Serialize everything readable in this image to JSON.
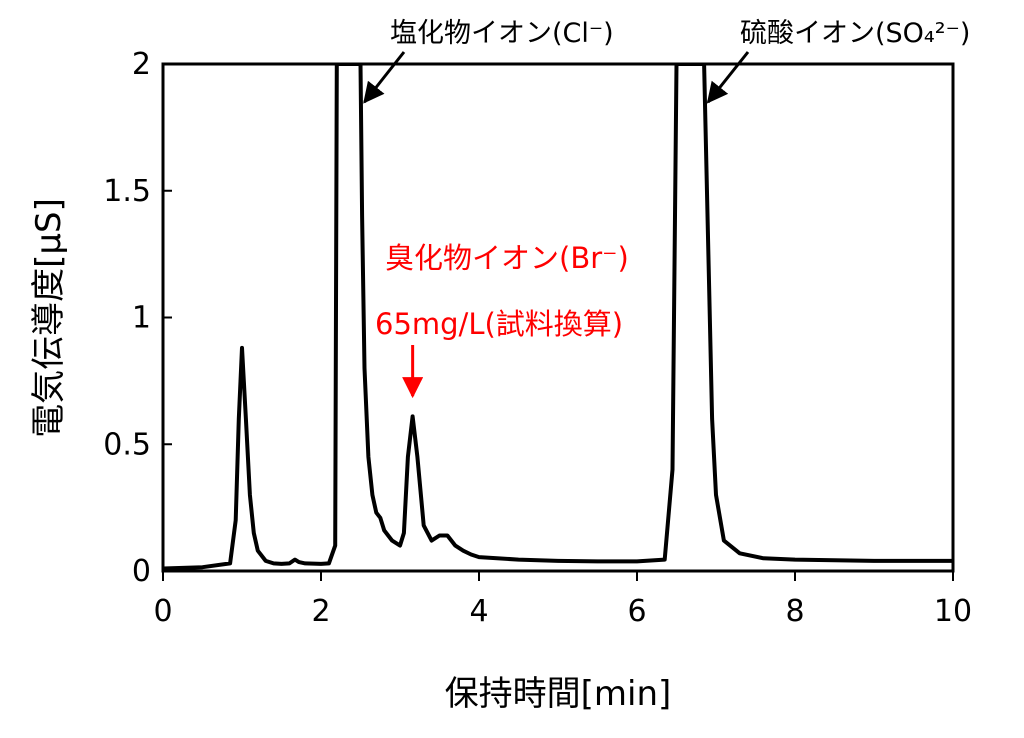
{
  "chart_data": {
    "type": "line",
    "xlabel": "保持時間[min]",
    "ylabel": "電気伝導度[μS]",
    "xlim": [
      0,
      10
    ],
    "ylim": [
      0,
      2
    ],
    "x_ticks": [
      0,
      2,
      4,
      6,
      8,
      10
    ],
    "y_ticks": [
      0,
      0.5,
      1,
      1.5,
      2
    ],
    "x_tick_labels": [
      "0",
      "2",
      "4",
      "6",
      "8",
      "10"
    ],
    "y_tick_labels": [
      "0",
      "0.5",
      "1",
      "1.5",
      "2"
    ],
    "grid": false,
    "series": [
      {
        "color": "#000000",
        "x": [
          0.0,
          0.5,
          0.85,
          0.92,
          0.96,
          1.0,
          1.05,
          1.1,
          1.15,
          1.2,
          1.3,
          1.4,
          1.5,
          1.6,
          1.67,
          1.72,
          1.8,
          2.0,
          2.1,
          2.18,
          2.2,
          2.5,
          2.52,
          2.55,
          2.6,
          2.65,
          2.7,
          2.75,
          2.8,
          2.9,
          3.0,
          3.05,
          3.1,
          3.16,
          3.22,
          3.3,
          3.4,
          3.5,
          3.6,
          3.7,
          3.8,
          3.9,
          4.0,
          4.5,
          5.0,
          5.5,
          6.0,
          6.35,
          6.45,
          6.5,
          6.85,
          6.9,
          6.95,
          7.0,
          7.1,
          7.3,
          7.6,
          8.0,
          9.0,
          10.0
        ],
        "y": [
          0.01,
          0.015,
          0.03,
          0.2,
          0.6,
          0.88,
          0.6,
          0.3,
          0.15,
          0.08,
          0.04,
          0.03,
          0.028,
          0.03,
          0.045,
          0.035,
          0.03,
          0.028,
          0.03,
          0.1,
          2.0,
          2.0,
          1.4,
          0.8,
          0.45,
          0.3,
          0.23,
          0.21,
          0.16,
          0.12,
          0.1,
          0.15,
          0.45,
          0.61,
          0.45,
          0.18,
          0.12,
          0.14,
          0.14,
          0.1,
          0.08,
          0.065,
          0.055,
          0.045,
          0.04,
          0.038,
          0.038,
          0.045,
          0.4,
          2.0,
          2.0,
          1.3,
          0.6,
          0.3,
          0.12,
          0.07,
          0.05,
          0.045,
          0.04,
          0.04
        ]
      }
    ],
    "annotations": [
      {
        "text": "塩化物イオン(Cl⁻)",
        "color": "#000000",
        "arrow_to": [
          2.5,
          1.85
        ]
      },
      {
        "text": "硫酸イオン(SO₄²⁻)",
        "color": "#000000",
        "arrow_to": [
          6.85,
          1.85
        ]
      },
      {
        "text": "臭化物イオン(Br⁻)",
        "color": "#ff0000"
      },
      {
        "text": "65mg/L(試料換算)",
        "color": "#ff0000",
        "arrow_to": [
          3.16,
          0.69
        ]
      }
    ]
  }
}
